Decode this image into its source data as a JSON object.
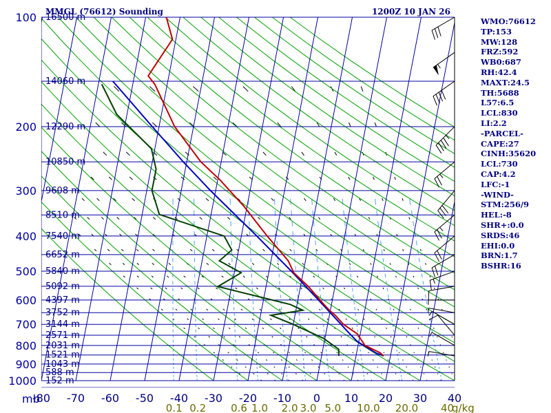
{
  "header": {
    "station": "MMGL (76612) Sounding",
    "valid": "1200Z 10 JAN 26"
  },
  "indices": [
    "WMO:76612",
    "TP:153",
    "MW:128",
    "FRZ:592",
    "WB0:687",
    "RH:42.4",
    "MAXT:24.5",
    "TH:5688",
    "L57:6.5",
    "LCL:830",
    "LI:2.2",
    "-PARCEL-",
    "CAPE:27",
    "CINH:35620",
    "LCL:730",
    "CAP:4.2",
    "LFC:-1",
    "-WIND-",
    "STM:256/9",
    "HEL:-8",
    "SHR+:0.0",
    "SRDS:46",
    "EHI:0.0",
    "BRN:1.7",
    "BSHR:16"
  ],
  "axis": {
    "pressure_unit": "mb",
    "mixing_ratio_unit": "g/kg"
  },
  "chart_data": {
    "type": "skew-t log-p",
    "x_unit": "°C",
    "y_unit": "mb",
    "pressure_ticks": [
      100,
      200,
      300,
      400,
      500,
      600,
      700,
      800,
      900,
      1000
    ],
    "temperature_ticks": [
      -80,
      -70,
      -60,
      -50,
      -40,
      -30,
      -20,
      -10,
      0,
      10,
      20,
      30,
      40
    ],
    "height_labels": [
      {
        "p": 100,
        "label": "16500 m"
      },
      {
        "p": 150,
        "label": "14060 m"
      },
      {
        "p": 200,
        "label": "12290 m"
      },
      {
        "p": 250,
        "label": "10850 m"
      },
      {
        "p": 300,
        "label": "9608 m"
      },
      {
        "p": 350,
        "label": "8510 m"
      },
      {
        "p": 400,
        "label": "7540 m"
      },
      {
        "p": 450,
        "label": "6652 m"
      },
      {
        "p": 500,
        "label": "5840 m"
      },
      {
        "p": 550,
        "label": "5092 m"
      },
      {
        "p": 600,
        "label": "4397 m"
      },
      {
        "p": 650,
        "label": "3752 m"
      },
      {
        "p": 700,
        "label": "3144 m"
      },
      {
        "p": 750,
        "label": "2571 m"
      },
      {
        "p": 800,
        "label": "2031 m"
      },
      {
        "p": 850,
        "label": "1521 m"
      },
      {
        "p": 900,
        "label": "1043 m"
      },
      {
        "p": 950,
        "label": "588 m"
      },
      {
        "p": 1000,
        "label": "152 m"
      }
    ],
    "mixing_ratio_labels": [
      "0.1",
      "0.2",
      "0.6",
      "1.0",
      "2.0",
      "3.0",
      "5.0",
      "10.0",
      "20.0",
      "40"
    ],
    "mixing_ratio_values": [
      0.1,
      0.2,
      0.6,
      1.0,
      2.0,
      3.0,
      5.0,
      10.0,
      20.0,
      40.0
    ],
    "temperature": [
      {
        "p": 855,
        "t": 18.0
      },
      {
        "p": 838,
        "t": 16.8
      },
      {
        "p": 800,
        "t": 12.0
      },
      {
        "p": 780,
        "t": 11.0
      },
      {
        "p": 744,
        "t": 9.2
      },
      {
        "p": 700,
        "t": 4.6
      },
      {
        "p": 661,
        "t": 1.7
      },
      {
        "p": 640,
        "t": -0.3
      },
      {
        "p": 617,
        "t": -2.2
      },
      {
        "p": 551,
        "t": -7.7
      },
      {
        "p": 505,
        "t": -12.7
      },
      {
        "p": 468,
        "t": -15.0
      },
      {
        "p": 400,
        "t": -22.5
      },
      {
        "p": 330,
        "t": -31.1
      },
      {
        "p": 280,
        "t": -39.4
      },
      {
        "p": 250,
        "t": -45.9
      },
      {
        "p": 200,
        "t": -55.5
      },
      {
        "p": 153,
        "t": -63.6
      },
      {
        "p": 145,
        "t": -66.0
      },
      {
        "p": 115,
        "t": -61.0
      },
      {
        "p": 100,
        "t": -64.0
      }
    ],
    "dewpoint": [
      {
        "p": 855,
        "t": 5.0
      },
      {
        "p": 820,
        "t": 4.6
      },
      {
        "p": 765,
        "t": -0.4
      },
      {
        "p": 700,
        "t": -10.0
      },
      {
        "p": 661,
        "t": -17.0
      },
      {
        "p": 640,
        "t": -8.0
      },
      {
        "p": 617,
        "t": -12.0
      },
      {
        "p": 551,
        "t": -34.0
      },
      {
        "p": 505,
        "t": -28.0
      },
      {
        "p": 468,
        "t": -35.0
      },
      {
        "p": 437,
        "t": -32.0
      },
      {
        "p": 400,
        "t": -35.0
      },
      {
        "p": 349,
        "t": -55.0
      },
      {
        "p": 300,
        "t": -58.5
      },
      {
        "p": 262,
        "t": -58.5
      },
      {
        "p": 230,
        "t": -61.0
      },
      {
        "p": 185,
        "t": -73.0
      },
      {
        "p": 153,
        "t": -79.0
      }
    ],
    "parcel": [
      {
        "p": 855,
        "t": 18.0
      },
      {
        "p": 838,
        "t": 15.5
      },
      {
        "p": 780,
        "t": 9.5
      },
      {
        "p": 730,
        "t": 6.0
      },
      {
        "p": 700,
        "t": 3.9
      },
      {
        "p": 600,
        "t": -4.0
      },
      {
        "p": 500,
        "t": -13.5
      },
      {
        "p": 400,
        "t": -25.5
      },
      {
        "p": 300,
        "t": -41.5
      },
      {
        "p": 250,
        "t": -51.0
      },
      {
        "p": 200,
        "t": -62.0
      },
      {
        "p": 153,
        "t": -75.0
      },
      {
        "p": 150,
        "t": -76.0
      }
    ],
    "wind_barbs": [
      {
        "p": 100,
        "dir": 240,
        "spd": 30
      },
      {
        "p": 125,
        "dir": 235,
        "spd": 55
      },
      {
        "p": 150,
        "dir": 235,
        "spd": 40
      },
      {
        "p": 200,
        "dir": 225,
        "spd": 45
      },
      {
        "p": 250,
        "dir": 230,
        "spd": 25
      },
      {
        "p": 300,
        "dir": 220,
        "spd": 30
      },
      {
        "p": 350,
        "dir": 230,
        "spd": 25
      },
      {
        "p": 400,
        "dir": 230,
        "spd": 20
      },
      {
        "p": 450,
        "dir": 240,
        "spd": 20
      },
      {
        "p": 500,
        "dir": 250,
        "spd": 15
      },
      {
        "p": 550,
        "dir": 260,
        "spd": 10
      },
      {
        "p": 600,
        "dir": 270,
        "spd": 5
      },
      {
        "p": 650,
        "dir": 280,
        "spd": 5
      },
      {
        "p": 700,
        "dir": 300,
        "spd": 5
      },
      {
        "p": 750,
        "dir": 320,
        "spd": 10
      },
      {
        "p": 800,
        "dir": 300,
        "spd": 5
      },
      {
        "p": 855,
        "dir": 280,
        "spd": 5
      }
    ],
    "colors": {
      "grid": "#0000a0",
      "dry_adiabat": "#00a000",
      "moist_adiabat": "#000000",
      "mixing_ratio": "#4aa0ff",
      "temperature": "#c00000",
      "dewpoint": "#004000",
      "parcel": "#0000c0",
      "barb": "#000000"
    }
  }
}
